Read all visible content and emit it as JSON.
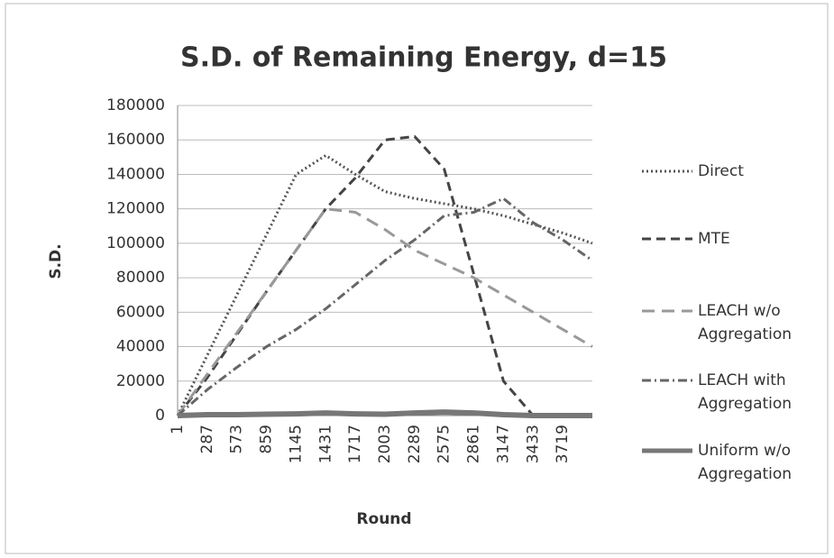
{
  "chart_data": {
    "type": "line",
    "title": "S.D. of Remaining Energy, d=15",
    "x_label": "Round",
    "y_label": "S.D.",
    "categories": [
      "1",
      "287",
      "573",
      "859",
      "1145",
      "1431",
      "1717",
      "2003",
      "2289",
      "2575",
      "2861",
      "3147",
      "3433",
      "3719",
      null
    ],
    "series": [
      {
        "name": "Direct",
        "color": "#555555",
        "dash": "2,3",
        "values": [
          0,
          35000,
          70000,
          105000,
          140000,
          151000,
          140000,
          130000,
          126000,
          123000,
          120000,
          116000,
          111000,
          106000,
          100000
        ]
      },
      {
        "name": "MTE",
        "color": "#444444",
        "dash": "10,6",
        "values": [
          0,
          22000,
          47000,
          72000,
          96000,
          120000,
          138000,
          160000,
          162000,
          143000,
          82000,
          20000,
          0,
          0,
          0
        ]
      },
      {
        "name": "LEACH w/o Aggregation",
        "color": "#999999",
        "dash": "14,8",
        "values": [
          0,
          24000,
          48000,
          72000,
          96000,
          120000,
          118000,
          108000,
          96000,
          88000,
          80000,
          70000,
          60000,
          50000,
          40000
        ]
      },
      {
        "name": "LEACH with Aggregation",
        "color": "#666666",
        "dash": "10,4,2,4",
        "values": [
          0,
          15000,
          28000,
          40000,
          50000,
          62000,
          76000,
          90000,
          102000,
          116000,
          118000,
          126000,
          112000,
          102000,
          90000
        ]
      },
      {
        "name": "Uniform w/o Aggregation",
        "color": "#777777",
        "dash": "",
        "values": [
          0,
          500,
          500,
          800,
          1000,
          1500,
          1000,
          800,
          1500,
          2000,
          1500,
          500,
          0,
          0,
          0
        ]
      }
    ],
    "ylim": [
      0,
      180000
    ],
    "yticks": [
      0,
      20000,
      40000,
      60000,
      80000,
      100000,
      120000,
      140000,
      160000,
      180000
    ],
    "grid": true
  }
}
